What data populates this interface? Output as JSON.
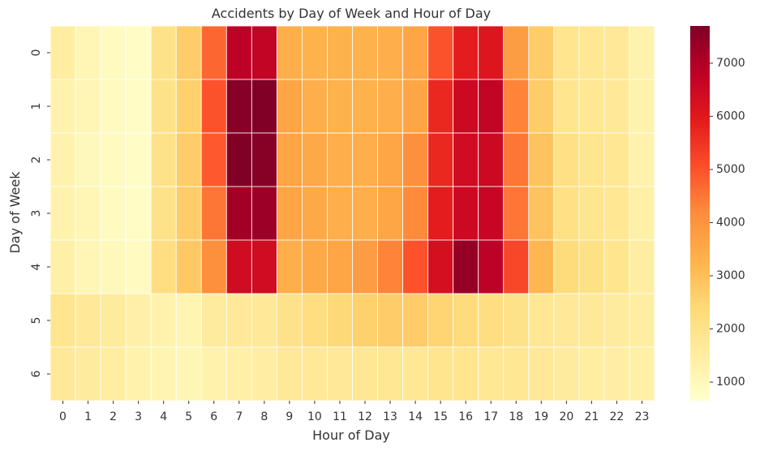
{
  "chart_data": {
    "type": "heatmap",
    "title": "Accidents by Day of Week and Hour of Day",
    "xlabel": "Hour of Day",
    "ylabel": "Day of Week",
    "x": [
      "0",
      "1",
      "2",
      "3",
      "4",
      "5",
      "6",
      "7",
      "8",
      "9",
      "10",
      "11",
      "12",
      "13",
      "14",
      "15",
      "16",
      "17",
      "18",
      "19",
      "20",
      "21",
      "22",
      "23"
    ],
    "y": [
      "0",
      "1",
      "2",
      "3",
      "4",
      "5",
      "6"
    ],
    "values": [
      [
        1500,
        1100,
        900,
        800,
        2000,
        2700,
        4700,
        6800,
        6700,
        3400,
        3300,
        3300,
        3300,
        3400,
        3600,
        5000,
        5900,
        6100,
        3800,
        2700,
        1900,
        1800,
        1700,
        1300
      ],
      [
        1300,
        1100,
        900,
        800,
        2000,
        2600,
        5000,
        7600,
        7700,
        3600,
        3400,
        3300,
        3300,
        3400,
        3600,
        5700,
        6500,
        6700,
        4300,
        2700,
        1900,
        1800,
        1700,
        1300
      ],
      [
        1300,
        1000,
        900,
        800,
        2000,
        2700,
        4900,
        7700,
        7600,
        3600,
        3500,
        3400,
        3400,
        3600,
        4100,
        5700,
        6400,
        6500,
        4500,
        2900,
        2100,
        1900,
        1800,
        1300
      ],
      [
        1300,
        1100,
        900,
        800,
        2000,
        2700,
        4500,
        7200,
        7300,
        3600,
        3500,
        3400,
        3400,
        3600,
        4200,
        5900,
        6500,
        6600,
        4500,
        2900,
        2100,
        1900,
        1800,
        1400
      ],
      [
        1400,
        1100,
        1000,
        900,
        2200,
        2800,
        4100,
        6400,
        6400,
        3400,
        3500,
        3600,
        3800,
        4300,
        5000,
        6300,
        7400,
        6800,
        5200,
        3200,
        2300,
        2100,
        1900,
        1500
      ],
      [
        1900,
        1700,
        1600,
        1400,
        1300,
        1200,
        1600,
        1700,
        1700,
        2000,
        2200,
        2400,
        2600,
        2700,
        2700,
        2500,
        2300,
        2200,
        2000,
        1800,
        1700,
        1700,
        1600,
        1500
      ],
      [
        1700,
        1600,
        1500,
        1300,
        1200,
        1100,
        1300,
        1400,
        1500,
        1700,
        1700,
        1700,
        1800,
        1800,
        1800,
        1900,
        1900,
        1800,
        1800,
        1700,
        1600,
        1500,
        1500,
        1400
      ]
    ],
    "colorbar": {
      "min": 650,
      "max": 7700,
      "ticks": [
        1000,
        2000,
        3000,
        4000,
        5000,
        6000,
        7000
      ],
      "colormap": "YlOrRd",
      "stops": [
        "#ffffcc",
        "#ffeda0",
        "#fed976",
        "#feb24c",
        "#fd8d3c",
        "#fc4e2a",
        "#e31a1c",
        "#bd0026",
        "#800026"
      ]
    },
    "grid": true
  }
}
